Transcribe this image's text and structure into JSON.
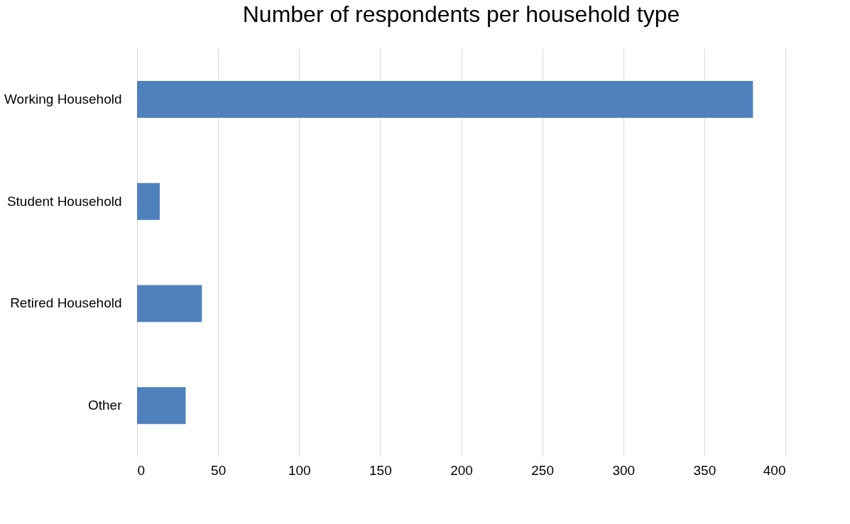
{
  "chart_data": {
    "type": "bar",
    "orientation": "horizontal",
    "title": "Number of respondents per household type",
    "categories": [
      "Working Household",
      "Student Household",
      "Retired Household",
      "Other"
    ],
    "values": [
      380,
      14,
      40,
      30
    ],
    "color": "#4f81bd",
    "xlim": [
      0,
      400
    ],
    "xticks": [
      0,
      50,
      100,
      150,
      200,
      250,
      300,
      350,
      400
    ],
    "grid": "x"
  }
}
